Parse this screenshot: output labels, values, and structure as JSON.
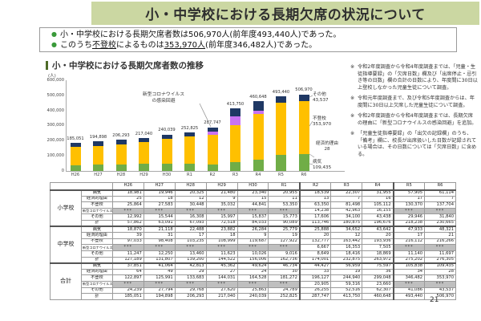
{
  "slide": {
    "title": "小・中学校における長期欠席の状況について",
    "page_number": "21"
  },
  "summary_bullets": [
    {
      "segments": [
        {
          "t": "小・中学校における長期欠席者数は506,970人(前年度493,440人)であった。"
        }
      ]
    },
    {
      "segments": [
        {
          "t": "このうち"
        },
        {
          "t": "不登校",
          "u": true
        },
        {
          "t": "によるものは"
        },
        {
          "t": "353,970人",
          "u": true
        },
        {
          "t": "(前年度346,482人)であった。"
        }
      ]
    }
  ],
  "chart_data": {
    "type": "bar",
    "stacked": true,
    "title": "小・中学校における長期欠席者数の推移",
    "unit_label": "(人)",
    "ylim": [
      0,
      600000
    ],
    "yticks": [
      "600,000",
      "500,000",
      "400,000",
      "300,000",
      "200,000",
      "100,000",
      "0"
    ],
    "categories": [
      "H26",
      "H27",
      "H28",
      "H29",
      "H30",
      "R1",
      "R2",
      "R3",
      "R4",
      "R5",
      "R6"
    ],
    "series": [
      {
        "name": "病気",
        "color": "#70AD47",
        "values": [
          37851,
          41064,
          42813,
          45362,
          49624,
          46734,
          44427,
          56959,
          75597,
          105838,
          109435
        ]
      },
      {
        "name": "経済的理由",
        "color": "#ED7D31",
        "values": [
          64,
          49,
          29,
          27,
          24,
          30,
          33,
          19,
          36,
          34,
          28
        ]
      },
      {
        "name": "不登校",
        "color": "#FFC000",
        "values": [
          122897,
          125991,
          133683,
          144031,
          164528,
          181272,
          196127,
          244940,
          299048,
          346482,
          353970
        ]
      },
      {
        "name": "新型コロナウイルスの感染回避",
        "color": "#C973F2",
        "values": [
          0,
          0,
          0,
          0,
          0,
          0,
          20905,
          59316,
          23660,
          0,
          0
        ]
      },
      {
        "name": "その他",
        "color": "#1F3864",
        "values": [
          24239,
          27794,
          29768,
          27620,
          25863,
          24789,
          26255,
          52516,
          62307,
          41086,
          43537
        ]
      }
    ],
    "totals": [
      "185,051",
      "194,898",
      "206,293",
      "217,040",
      "240,039",
      "252,825",
      "287,747",
      "413,750",
      "460,648",
      "493,440",
      "506,970"
    ],
    "annotation": "新型コロナウイルス\nの感染回避",
    "segment_labels": [
      {
        "lines": [
          "その他",
          "43,537"
        ]
      },
      {
        "lines": [
          "不登校",
          "353,970"
        ]
      },
      {
        "lines": [
          "経済的理由",
          "28"
        ]
      },
      {
        "lines": [
          "病気",
          "109,435"
        ]
      }
    ],
    "legend_position": "right",
    "grid": false
  },
  "notes": [
    "令和2年度調査から令和4年度調査までは、「児童・生徒指導要録」の「欠席日数」欄及び「出席停止・忌引き等の日数」欄の合計の日数により、年度間に30日以上登校しなかった児童生徒について調査。",
    "令和元年度調査まで、及び令和5年度調査からは、年度間に30日以上欠席した児童生徒について調査。",
    "令和2年度調査から令和4年度調査までは、長期欠席の理由に「新型コロナウイルスの感染回避」を追加。",
    "「児童生徒指導要録」の「出欠の記録欄」のうち、「備考」欄に、校長が出席扱いした日数が記録されている場合は、その日数については「欠席日数」に含める。"
  ],
  "table": {
    "col_headers": [
      "H26",
      "H27",
      "H28",
      "H29",
      "H30",
      "R1",
      "R2",
      "R3",
      "R4",
      "R5",
      "R6"
    ],
    "reason_labels": [
      "病気",
      "経済的理由",
      "不登校",
      "新型コロナウイルスの感染回避",
      "その他",
      "計"
    ],
    "masked_value": "***",
    "groups": [
      {
        "name": "小学校",
        "rows": [
          [
            "18,981",
            "19,946",
            "20,325",
            "21,480",
            "23,340",
            "20,955",
            "18,539",
            "22,307",
            "31,955",
            "57,905",
            "61,114"
          ],
          [
            "25",
            "18",
            "12",
            "9",
            "15",
            "11",
            "13",
            "7",
            "16",
            "17",
            "7"
          ],
          [
            "25,864",
            "27,583",
            "30,448",
            "35,032",
            "44,841",
            "53,350",
            "63,350",
            "81,498",
            "105,112",
            "130,370",
            "137,704"
          ],
          [
            "***",
            "***",
            "***",
            "***",
            "***",
            "***",
            "14,238",
            "42,963",
            "16,155",
            "***",
            "***"
          ],
          [
            "12,992",
            "15,544",
            "16,308",
            "15,997",
            "15,837",
            "15,773",
            "17,606",
            "34,100",
            "43,438",
            "29,946",
            "31,840"
          ],
          [
            "57,862",
            "63,091",
            "67,093",
            "72,518",
            "84,033",
            "90,089",
            "113,746",
            "180,875",
            "196,676",
            "218,238",
            "230,665"
          ]
        ]
      },
      {
        "name": "中学校",
        "rows": [
          [
            "18,870",
            "21,118",
            "22,488",
            "23,882",
            "26,284",
            "25,779",
            "25,888",
            "34,652",
            "43,642",
            "47,933",
            "48,321"
          ],
          [
            "39",
            "31",
            "17",
            "18",
            "9",
            "19",
            "20",
            "12",
            "20",
            "17",
            "21"
          ],
          [
            "97,033",
            "98,408",
            "103,235",
            "108,999",
            "119,687",
            "127,922",
            "132,777",
            "163,442",
            "193,936",
            "216,112",
            "216,266"
          ],
          [
            "***",
            "***",
            "***",
            "***",
            "***",
            "***",
            "6,667",
            "16,353",
            "7,505",
            "***",
            "***"
          ],
          [
            "11,247",
            "12,250",
            "13,460",
            "11,623",
            "10,026",
            "9,016",
            "8,649",
            "18,416",
            "18,869",
            "11,140",
            "11,697"
          ],
          [
            "127,189",
            "131,807",
            "139,200",
            "144,522",
            "156,006",
            "162,736",
            "174,001",
            "232,875",
            "263,972",
            "275,202",
            "276,305"
          ]
        ]
      },
      {
        "name": "合計",
        "rows": [
          [
            "37,851",
            "41,064",
            "42,813",
            "45,362",
            "49,624",
            "46,734",
            "44,427",
            "56,959",
            "75,597",
            "105,838",
            "109,435"
          ],
          [
            "64",
            "49",
            "29",
            "27",
            "24",
            "30",
            "33",
            "19",
            "36",
            "34",
            "28"
          ],
          [
            "122,897",
            "125,991",
            "133,683",
            "144,031",
            "164,528",
            "181,272",
            "196,127",
            "244,940",
            "299,048",
            "346,482",
            "353,970"
          ],
          [
            "***",
            "***",
            "***",
            "***",
            "***",
            "***",
            "20,905",
            "59,316",
            "23,660",
            "***",
            "***"
          ],
          [
            "24,239",
            "27,794",
            "29,768",
            "27,620",
            "25,863",
            "24,789",
            "26,255",
            "52,516",
            "62,307",
            "41,086",
            "43,537"
          ],
          [
            "185,051",
            "194,898",
            "206,293",
            "217,040",
            "240,039",
            "252,825",
            "287,747",
            "413,750",
            "460,648",
            "493,440",
            "506,970"
          ]
        ]
      }
    ]
  }
}
